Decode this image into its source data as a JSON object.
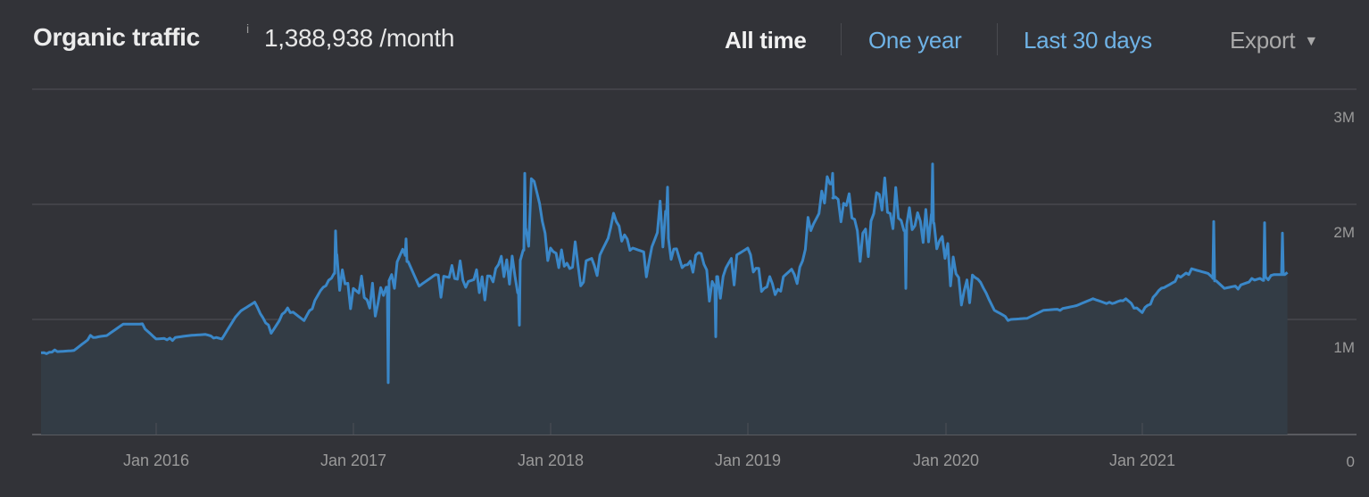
{
  "header": {
    "title": "Organic traffic",
    "info_icon": "i",
    "metric_value": "1,388,938 /month"
  },
  "range_tabs": [
    {
      "label": "All time",
      "active": true
    },
    {
      "label": "One year",
      "active": false
    },
    {
      "label": "Last 30 days",
      "active": false
    }
  ],
  "export": {
    "label": "Export",
    "caret": "▼"
  },
  "colors": {
    "background": "#323338",
    "line": "#3a87c8",
    "area": "#333c45",
    "gridline": "#47484d",
    "active_tab": "#f2f2f2",
    "link_tab": "#6fb3e6",
    "axis_label": "#9a9a9a"
  },
  "chart_data": {
    "type": "area",
    "title": "Organic traffic",
    "xlabel": "",
    "ylabel": "",
    "ylim": [
      0,
      3000000
    ],
    "y_ticks": [
      "0",
      "1M",
      "2M",
      "3M"
    ],
    "x_ticks": [
      "Jan 2016",
      "Jan 2017",
      "Jan 2018",
      "Jan 2019",
      "Jan 2020",
      "Jan 2021"
    ],
    "grid": true,
    "legend": "none",
    "current_value": 1388938,
    "x": [
      "2015-06",
      "2015-07",
      "2015-08",
      "2015-09",
      "2015-10",
      "2015-11",
      "2015-12",
      "2016-01",
      "2016-02",
      "2016-03",
      "2016-04",
      "2016-05",
      "2016-06",
      "2016-07",
      "2016-08",
      "2016-09",
      "2016-10",
      "2016-11",
      "2016-12",
      "2017-01",
      "2017-02",
      "2017-03",
      "2017-04",
      "2017-05",
      "2017-06",
      "2017-07",
      "2017-08",
      "2017-09",
      "2017-10",
      "2017-11",
      "2017-12",
      "2018-01",
      "2018-02",
      "2018-03",
      "2018-04",
      "2018-05",
      "2018-06",
      "2018-07",
      "2018-08",
      "2018-09",
      "2018-10",
      "2018-11",
      "2018-12",
      "2019-01",
      "2019-02",
      "2019-03",
      "2019-04",
      "2019-05",
      "2019-06",
      "2019-07",
      "2019-08",
      "2019-09",
      "2019-10",
      "2019-11",
      "2019-12",
      "2020-01",
      "2020-02",
      "2020-03",
      "2020-04",
      "2020-05",
      "2020-06",
      "2020-07",
      "2020-08",
      "2020-09",
      "2020-10",
      "2020-11",
      "2020-12",
      "2021-01",
      "2021-02",
      "2021-03",
      "2021-04",
      "2021-05",
      "2021-06",
      "2021-07",
      "2021-08",
      "2021-09"
    ],
    "values": [
      710000,
      720000,
      730000,
      840000,
      860000,
      960000,
      960000,
      830000,
      840000,
      860000,
      870000,
      830000,
      1060000,
      1150000,
      880000,
      1100000,
      990000,
      1250000,
      1430000,
      1270000,
      1150000,
      1280000,
      1610000,
      1290000,
      1390000,
      1360000,
      1330000,
      1380000,
      1370000,
      1380000,
      2200000,
      1620000,
      1430000,
      1500000,
      1560000,
      1850000,
      1620000,
      1570000,
      1940000,
      1450000,
      1580000,
      1280000,
      1530000,
      1620000,
      1270000,
      1350000,
      1480000,
      1830000,
      2100000,
      1990000,
      1750000,
      1960000,
      1900000,
      1780000,
      1990000,
      1530000,
      1330000,
      1370000,
      1080000,
      1000000,
      1010000,
      1080000,
      1090000,
      1120000,
      1180000,
      1130000,
      1180000,
      1060000,
      1250000,
      1330000,
      1440000,
      1400000,
      1270000,
      1300000,
      1350000,
      1388938
    ]
  }
}
